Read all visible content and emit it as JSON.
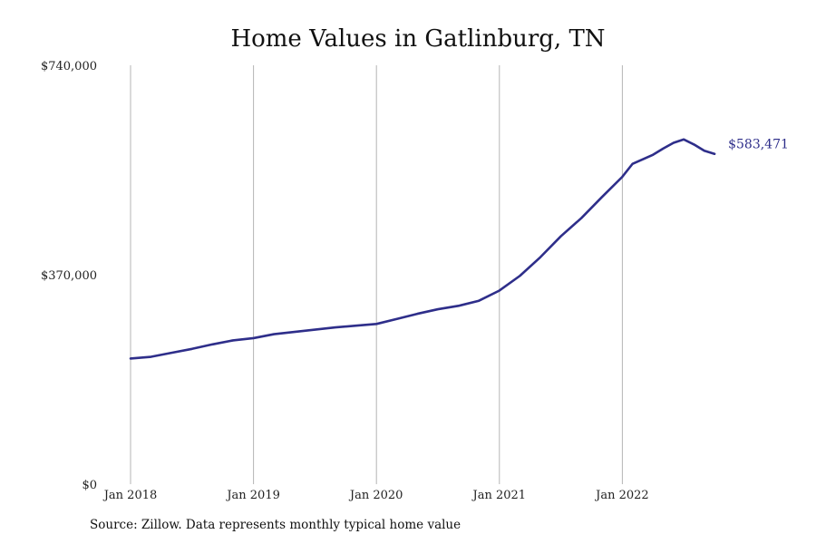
{
  "chart_data": {
    "type": "line",
    "title": "Home Values in Gatlinburg, TN",
    "xlabel": "",
    "ylabel": "",
    "x_ticks": [
      "Jan 2018",
      "Jan 2019",
      "Jan 2020",
      "Jan 2021",
      "Jan 2022"
    ],
    "y_ticks": [
      "$0",
      "$370,000",
      "$740,000"
    ],
    "ylim": [
      0,
      740000
    ],
    "xlim": [
      "2018-01",
      "2022-10"
    ],
    "grid": "vertical",
    "legend": "none",
    "end_label": "$583,471",
    "series": [
      {
        "color": "#2e2e8a",
        "points": [
          {
            "x": "2018-01",
            "y": 222000
          },
          {
            "x": "2018-03",
            "y": 225000
          },
          {
            "x": "2018-05",
            "y": 232000
          },
          {
            "x": "2018-07",
            "y": 239000
          },
          {
            "x": "2018-09",
            "y": 247000
          },
          {
            "x": "2018-11",
            "y": 254000
          },
          {
            "x": "2019-01",
            "y": 258000
          },
          {
            "x": "2019-03",
            "y": 265000
          },
          {
            "x": "2019-05",
            "y": 269000
          },
          {
            "x": "2019-07",
            "y": 273000
          },
          {
            "x": "2019-09",
            "y": 277000
          },
          {
            "x": "2019-11",
            "y": 280000
          },
          {
            "x": "2020-01",
            "y": 283000
          },
          {
            "x": "2020-03",
            "y": 292000
          },
          {
            "x": "2020-05",
            "y": 301000
          },
          {
            "x": "2020-07",
            "y": 309000
          },
          {
            "x": "2020-09",
            "y": 315000
          },
          {
            "x": "2020-11",
            "y": 324000
          },
          {
            "x": "2021-01",
            "y": 342000
          },
          {
            "x": "2021-03",
            "y": 368000
          },
          {
            "x": "2021-05",
            "y": 401000
          },
          {
            "x": "2021-07",
            "y": 438000
          },
          {
            "x": "2021-09",
            "y": 470000
          },
          {
            "x": "2021-11",
            "y": 507000
          },
          {
            "x": "2022-01",
            "y": 543000
          },
          {
            "x": "2022-02",
            "y": 566000
          },
          {
            "x": "2022-04",
            "y": 582000
          },
          {
            "x": "2022-05",
            "y": 593000
          },
          {
            "x": "2022-06",
            "y": 603000
          },
          {
            "x": "2022-07",
            "y": 609000
          },
          {
            "x": "2022-08",
            "y": 600000
          },
          {
            "x": "2022-09",
            "y": 589000
          },
          {
            "x": "2022-10",
            "y": 583471
          }
        ]
      }
    ]
  },
  "source_note": "Source: Zillow. Data represents monthly typical home value"
}
